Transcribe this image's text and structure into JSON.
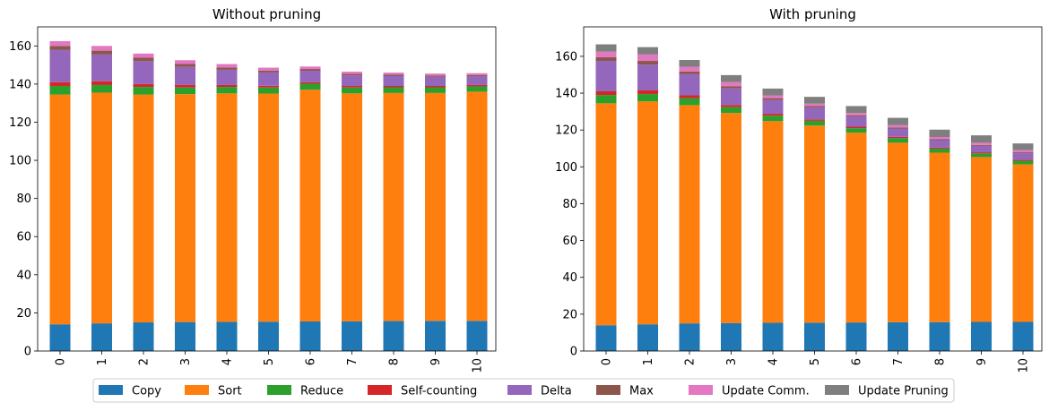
{
  "chart_data": [
    {
      "type": "bar",
      "stacked": true,
      "title": "Without pruning",
      "xlabel": "",
      "ylabel": "",
      "categories": [
        "0",
        "1",
        "2",
        "3",
        "4",
        "5",
        "6",
        "7",
        "8",
        "9",
        "10"
      ],
      "ylim": [
        0,
        170
      ],
      "yticks": [
        0,
        20,
        40,
        60,
        80,
        100,
        120,
        140,
        160
      ],
      "series": [
        {
          "name": "Copy",
          "values": [
            14.0,
            14.5,
            15.0,
            15.2,
            15.3,
            15.4,
            15.5,
            15.6,
            15.7,
            15.8,
            15.8
          ]
        },
        {
          "name": "Sort",
          "values": [
            120.5,
            121.0,
            119.5,
            119.5,
            119.8,
            119.6,
            121.5,
            119.5,
            119.6,
            119.5,
            120.2
          ]
        },
        {
          "name": "Reduce",
          "values": [
            4.5,
            4.0,
            4.0,
            3.5,
            3.4,
            3.2,
            3.2,
            3.1,
            3.0,
            3.0,
            2.8
          ]
        },
        {
          "name": "Self-counting",
          "values": [
            2.0,
            2.0,
            1.5,
            1.3,
            1.0,
            0.9,
            0.8,
            0.8,
            0.7,
            0.7,
            0.7
          ]
        },
        {
          "name": "Delta",
          "values": [
            17.0,
            14.0,
            12.0,
            9.5,
            8.0,
            7.0,
            6.0,
            5.5,
            5.2,
            4.8,
            4.5
          ]
        },
        {
          "name": "Max",
          "values": [
            2.0,
            2.0,
            1.8,
            1.5,
            1.2,
            1.0,
            0.9,
            0.8,
            0.8,
            0.7,
            0.7
          ]
        },
        {
          "name": "Update Comm.",
          "values": [
            2.5,
            2.5,
            2.2,
            2.0,
            1.8,
            1.5,
            1.3,
            1.2,
            1.0,
            1.0,
            1.0
          ]
        },
        {
          "name": "Update Pruning",
          "values": [
            0,
            0,
            0,
            0,
            0,
            0,
            0,
            0,
            0,
            0,
            0
          ]
        }
      ]
    },
    {
      "type": "bar",
      "stacked": true,
      "title": "With pruning",
      "xlabel": "",
      "ylabel": "",
      "categories": [
        "0",
        "1",
        "2",
        "3",
        "4",
        "5",
        "6",
        "7",
        "8",
        "9",
        "10"
      ],
      "ylim": [
        0,
        176
      ],
      "yticks": [
        0,
        20,
        40,
        60,
        80,
        100,
        120,
        140,
        160
      ],
      "series": [
        {
          "name": "Copy",
          "values": [
            14.0,
            14.5,
            15.0,
            15.2,
            15.3,
            15.4,
            15.5,
            15.6,
            15.7,
            15.8,
            15.8
          ]
        },
        {
          "name": "Sort",
          "values": [
            120.5,
            121.0,
            118.5,
            114.0,
            109.5,
            107.0,
            103.0,
            97.5,
            92.0,
            89.5,
            85.5
          ]
        },
        {
          "name": "Reduce",
          "values": [
            4.5,
            4.0,
            3.8,
            3.2,
            3.0,
            2.6,
            2.5,
            2.5,
            2.2,
            2.0,
            2.0
          ]
        },
        {
          "name": "Self-counting",
          "values": [
            2.0,
            2.0,
            1.5,
            1.2,
            1.0,
            0.8,
            0.8,
            0.7,
            0.6,
            0.6,
            0.6
          ]
        },
        {
          "name": "Delta",
          "values": [
            16.5,
            14.0,
            11.5,
            9.0,
            7.5,
            6.5,
            5.5,
            4.5,
            4.0,
            3.5,
            3.5
          ]
        },
        {
          "name": "Max",
          "values": [
            2.0,
            2.0,
            1.5,
            1.2,
            1.0,
            0.8,
            0.7,
            0.6,
            0.5,
            0.5,
            0.5
          ]
        },
        {
          "name": "Update Comm.",
          "values": [
            3.0,
            3.5,
            2.5,
            2.2,
            1.5,
            1.2,
            1.2,
            1.2,
            1.2,
            1.2,
            1.2
          ]
        },
        {
          "name": "Update Pruning",
          "values": [
            4.0,
            4.0,
            3.7,
            3.8,
            3.7,
            3.7,
            3.8,
            4.0,
            4.0,
            4.0,
            3.6
          ]
        }
      ]
    }
  ],
  "legend": {
    "placement": "bottom-center",
    "items": [
      {
        "label": "Copy",
        "color": "#1f77b4"
      },
      {
        "label": "Sort",
        "color": "#ff7f0e"
      },
      {
        "label": "Reduce",
        "color": "#2ca02c"
      },
      {
        "label": "Self-counting",
        "color": "#d62728"
      },
      {
        "label": "Delta",
        "color": "#9467bd"
      },
      {
        "label": "Max",
        "color": "#8c564b"
      },
      {
        "label": "Update Comm.",
        "color": "#e377c2"
      },
      {
        "label": "Update Pruning",
        "color": "#7f7f7f"
      }
    ]
  }
}
